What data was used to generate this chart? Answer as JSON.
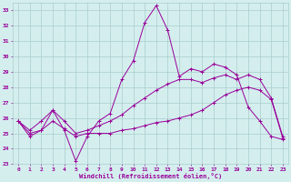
{
  "xlabel": "Windchill (Refroidissement éolien,°C)",
  "bg_color": "#d4eeee",
  "grid_color": "#aacccc",
  "line_color": "#990099",
  "xlim": [
    -0.5,
    23.5
  ],
  "ylim": [
    23,
    33.5
  ],
  "yticks": [
    23,
    24,
    25,
    26,
    27,
    28,
    29,
    30,
    31,
    32,
    33
  ],
  "xticks": [
    0,
    1,
    2,
    3,
    4,
    5,
    6,
    7,
    8,
    9,
    10,
    11,
    12,
    13,
    14,
    15,
    16,
    17,
    18,
    19,
    20,
    21,
    22,
    23
  ],
  "series1": [
    25.8,
    24.8,
    25.2,
    26.5,
    25.2,
    23.2,
    24.8,
    25.8,
    26.3,
    28.5,
    29.7,
    32.2,
    33.3,
    31.7,
    28.7,
    29.2,
    29.0,
    29.5,
    29.3,
    28.8,
    26.7,
    25.8,
    24.8,
    24.6
  ],
  "series2": [
    25.8,
    25.2,
    25.8,
    26.5,
    25.8,
    25.0,
    25.2,
    25.5,
    25.8,
    26.2,
    26.8,
    27.3,
    27.8,
    28.2,
    28.5,
    28.5,
    28.3,
    28.6,
    28.8,
    28.5,
    28.8,
    28.5,
    27.3,
    24.8
  ],
  "series3": [
    25.8,
    25.0,
    25.2,
    25.8,
    25.3,
    24.8,
    25.0,
    25.0,
    25.0,
    25.2,
    25.3,
    25.5,
    25.7,
    25.8,
    26.0,
    26.2,
    26.5,
    27.0,
    27.5,
    27.8,
    28.0,
    27.8,
    27.2,
    24.7
  ]
}
